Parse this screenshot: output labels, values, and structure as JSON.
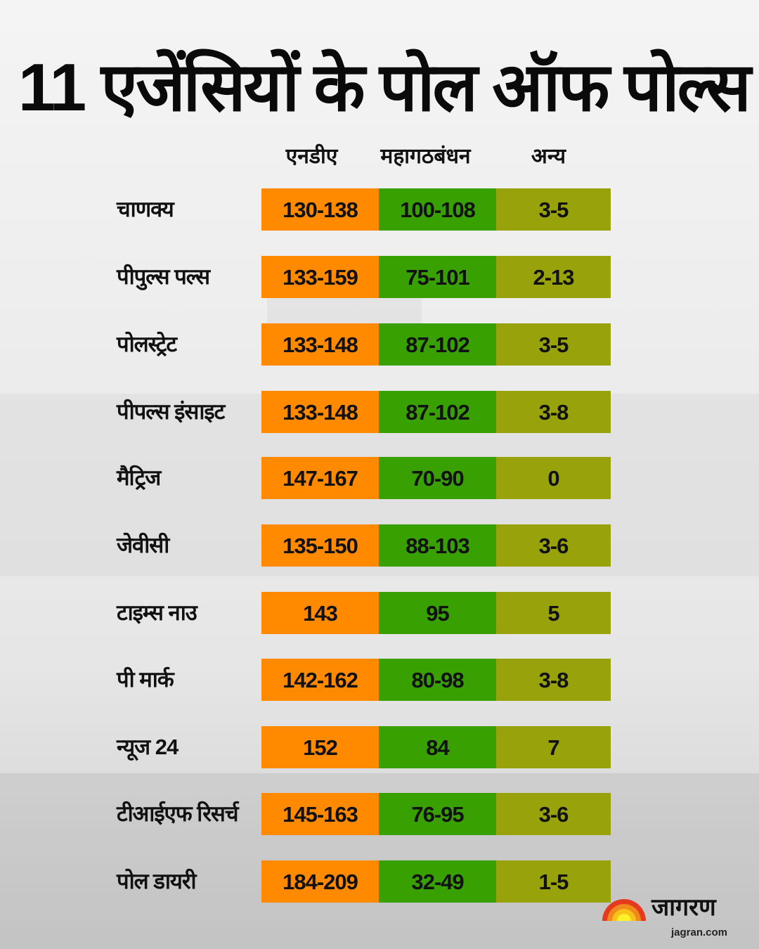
{
  "title": "11 एजेंसियों के पोल ऑफ पोल्स",
  "colors": {
    "nda": "#FF8A00",
    "mgb": "#38A000",
    "others": "#98A20A"
  },
  "chart_data": {
    "type": "table",
    "columns": [
      "एनडीए",
      "महागठबंधन",
      "अन्य"
    ],
    "rows": [
      {
        "agency": "चाणक्य",
        "values": [
          "130-138",
          "100-108",
          "3-5"
        ]
      },
      {
        "agency": "पीपुल्स पल्स",
        "values": [
          "133-159",
          "75-101",
          "2-13"
        ]
      },
      {
        "agency": "पोलस्ट्रेट",
        "values": [
          "133-148",
          "87-102",
          "3-5"
        ]
      },
      {
        "agency": "पीपल्स इंसाइट",
        "values": [
          "133-148",
          "87-102",
          "3-8"
        ]
      },
      {
        "agency": "मैट्रिज",
        "values": [
          "147-167",
          "70-90",
          "0"
        ]
      },
      {
        "agency": "जेवीसी",
        "values": [
          "135-150",
          "88-103",
          "3-6"
        ]
      },
      {
        "agency": "टाइम्स नाउ",
        "values": [
          "143",
          "95",
          "5"
        ]
      },
      {
        "agency": "पी मार्क",
        "values": [
          "142-162",
          "80-98",
          "3-8"
        ]
      },
      {
        "agency": "न्यूज 24",
        "values": [
          "152",
          "84",
          "7"
        ]
      },
      {
        "agency": "टीआईएफ रिसर्च",
        "values": [
          "145-163",
          "76-95",
          "3-6"
        ]
      },
      {
        "agency": "पोल डायरी",
        "values": [
          "184-209",
          "32-49",
          "1-5"
        ]
      }
    ]
  },
  "logo": {
    "word": "जागरण",
    "url": "jagran.com",
    "icon": "rising-sun-icon"
  }
}
